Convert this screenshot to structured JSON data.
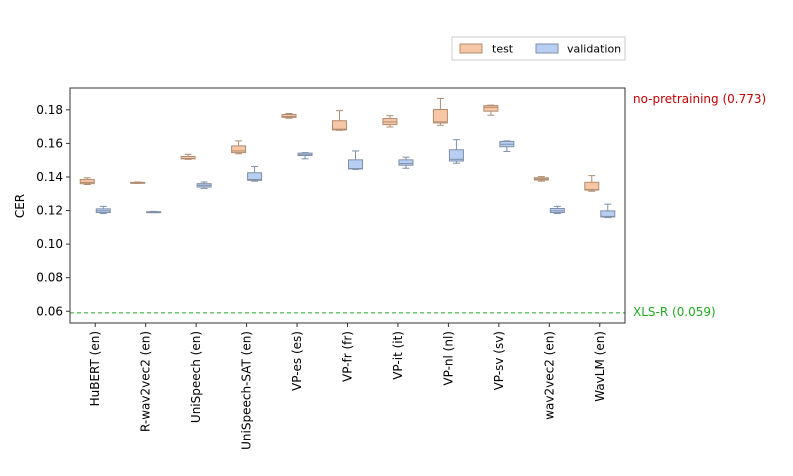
{
  "chart_data": {
    "type": "box",
    "title": "",
    "xlabel": "",
    "ylabel": "CER",
    "ylim": [
      0.053,
      0.193
    ],
    "yticks": [
      0.06,
      0.08,
      0.1,
      0.12,
      0.14,
      0.16,
      0.18
    ],
    "ytick_labels": [
      "0.06",
      "0.08",
      "0.10",
      "0.12",
      "0.14",
      "0.16",
      "0.18"
    ],
    "grid": false,
    "legend_position": "top-right, outside plot",
    "categories": [
      "HuBERT (en)",
      "R-wav2vec2 (en)",
      "UniSpeech (en)",
      "UniSpeech-SAT (en)",
      "VP-es (es)",
      "VP-fr (fr)",
      "VP-it (it)",
      "VP-nl (nl)",
      "VP-sv (sv)",
      "wav2vec2 (en)",
      "WavLM (en)"
    ],
    "series": [
      {
        "name": "test",
        "color": "#f6c6a5",
        "edge_color": "#b08c70",
        "boxes": [
          {
            "whislo": 0.1355,
            "q1": 0.136,
            "med": 0.1368,
            "q3": 0.1385,
            "whishi": 0.1395
          },
          {
            "whislo": 0.1362,
            "q1": 0.1365,
            "med": 0.1366,
            "q3": 0.1368,
            "whishi": 0.137
          },
          {
            "whislo": 0.1505,
            "q1": 0.1508,
            "med": 0.151,
            "q3": 0.1522,
            "whishi": 0.1535
          },
          {
            "whislo": 0.1538,
            "q1": 0.1545,
            "med": 0.1555,
            "q3": 0.1585,
            "whishi": 0.1615
          },
          {
            "whislo": 0.175,
            "q1": 0.1755,
            "med": 0.176,
            "q3": 0.1772,
            "whishi": 0.1778
          },
          {
            "whislo": 0.1678,
            "q1": 0.168,
            "med": 0.1685,
            "q3": 0.1735,
            "whishi": 0.1795
          },
          {
            "whislo": 0.1698,
            "q1": 0.1712,
            "med": 0.1728,
            "q3": 0.1748,
            "whishi": 0.1765
          },
          {
            "whislo": 0.1708,
            "q1": 0.1722,
            "med": 0.1728,
            "q3": 0.1802,
            "whishi": 0.1868
          },
          {
            "whislo": 0.1768,
            "q1": 0.1792,
            "med": 0.1815,
            "q3": 0.1825,
            "whishi": 0.1828
          },
          {
            "whislo": 0.1375,
            "q1": 0.1382,
            "med": 0.1388,
            "q3": 0.1395,
            "whishi": 0.1402
          },
          {
            "whislo": 0.1315,
            "q1": 0.1322,
            "med": 0.1325,
            "q3": 0.1368,
            "whishi": 0.1408
          }
        ]
      },
      {
        "name": "validation",
        "color": "#b8cff3",
        "edge_color": "#7f8fa8",
        "boxes": [
          {
            "whislo": 0.1182,
            "q1": 0.1188,
            "med": 0.1198,
            "q3": 0.121,
            "whishi": 0.1225
          },
          {
            "whislo": 0.1188,
            "q1": 0.119,
            "med": 0.1191,
            "q3": 0.1193,
            "whishi": 0.1195
          },
          {
            "whislo": 0.1332,
            "q1": 0.134,
            "med": 0.135,
            "q3": 0.136,
            "whishi": 0.137
          },
          {
            "whislo": 0.1375,
            "q1": 0.138,
            "med": 0.1385,
            "q3": 0.1425,
            "whishi": 0.1462
          },
          {
            "whislo": 0.1508,
            "q1": 0.1528,
            "med": 0.1532,
            "q3": 0.1542,
            "whishi": 0.1545
          },
          {
            "whislo": 0.1445,
            "q1": 0.1448,
            "med": 0.145,
            "q3": 0.1502,
            "whishi": 0.1555
          },
          {
            "whislo": 0.1452,
            "q1": 0.147,
            "med": 0.148,
            "q3": 0.1502,
            "whishi": 0.1518
          },
          {
            "whislo": 0.1482,
            "q1": 0.1495,
            "med": 0.1505,
            "q3": 0.1562,
            "whishi": 0.1622
          },
          {
            "whislo": 0.1552,
            "q1": 0.158,
            "med": 0.1595,
            "q3": 0.1612,
            "whishi": 0.1615
          },
          {
            "whislo": 0.1182,
            "q1": 0.1188,
            "med": 0.1198,
            "q3": 0.1212,
            "whishi": 0.1225
          },
          {
            "whislo": 0.1158,
            "q1": 0.1162,
            "med": 0.1165,
            "q3": 0.1198,
            "whishi": 0.1238
          }
        ]
      }
    ],
    "reference_lines": [
      {
        "label": "no-pretraining (0.773)",
        "value": 0.773,
        "color": "#c00000",
        "drawn": false
      },
      {
        "label": "XLS-R (0.059)",
        "value": 0.059,
        "color": "#22aa22",
        "drawn": true,
        "style": "dashed"
      }
    ]
  }
}
